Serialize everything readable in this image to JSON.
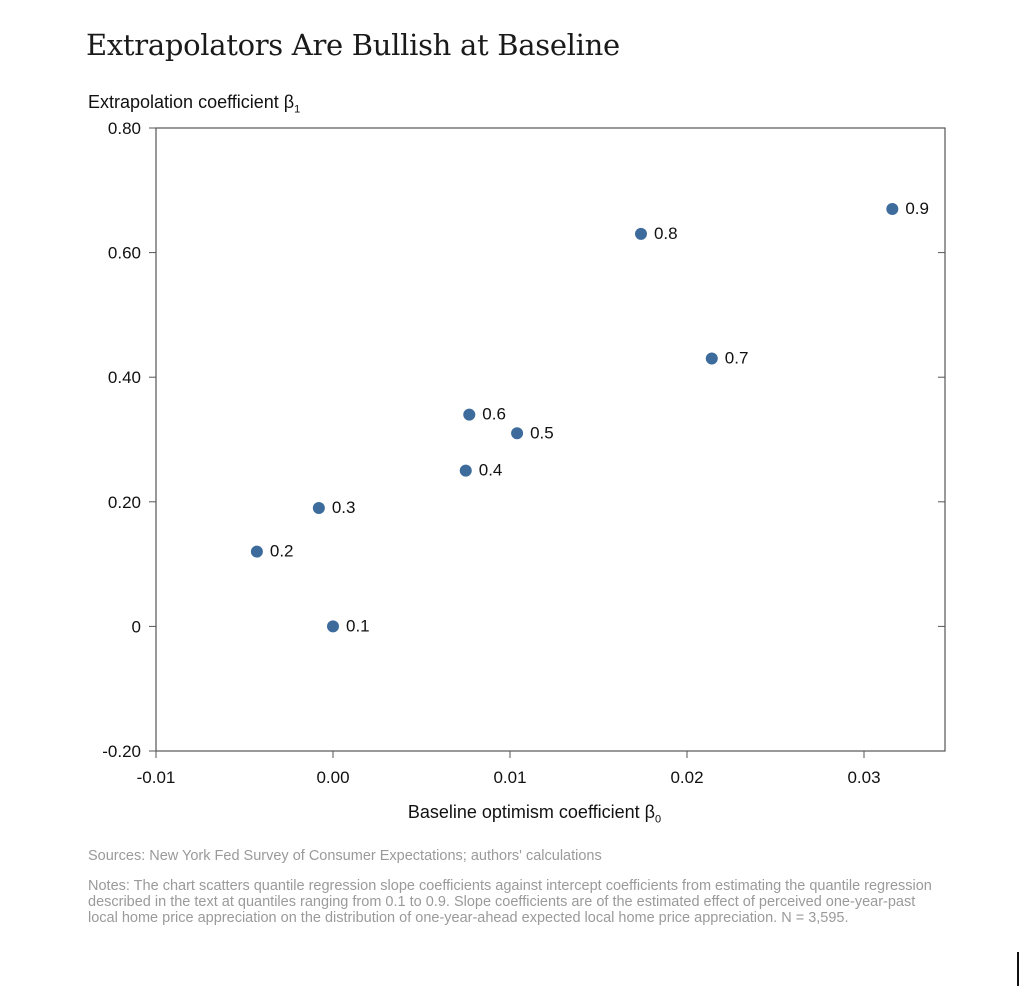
{
  "title": "Extrapolators Are Bullish at Baseline",
  "sources": "Sources:  New York Fed Survey of Consumer Expectations; authors' calculations",
  "notes": "Notes: The chart scatters quantile regression slope coefficients against intercept coefficients from estimating the quantile regression described in the text at quantiles ranging from 0.1 to 0.9. Slope coefficients are of the estimated effect of perceived one-year-past local home price appreciation on the distribution of one-year-ahead expected local home price appreciation. N = 3,595.",
  "chart_data": {
    "type": "scatter",
    "title": "Extrapolators Are Bullish at Baseline",
    "xlabel": "Baseline optimism coefficient β",
    "xlabel_sub": "0",
    "ylabel": "Extrapolation coefficient β",
    "ylabel_sub": "1",
    "xlim": [
      -0.01,
      0.035
    ],
    "ylim": [
      -0.2,
      0.8
    ],
    "xticks": [
      -0.01,
      0.0,
      0.01,
      0.02,
      0.03
    ],
    "xtick_labels": [
      "-0.01",
      "0.00",
      "0.01",
      "0.02",
      "0.03"
    ],
    "yticks": [
      -0.2,
      0.0,
      0.2,
      0.4,
      0.6,
      0.8
    ],
    "ytick_labels": [
      "-0.20",
      "0",
      "0.20",
      "0.40",
      "0.60",
      "0.80"
    ],
    "grid": false,
    "marker_color": "#3d6b9c",
    "points": [
      {
        "x": 0.0,
        "y": 0.0,
        "label": "0.1"
      },
      {
        "x": -0.0043,
        "y": 0.12,
        "label": "0.2"
      },
      {
        "x": -0.0008,
        "y": 0.19,
        "label": "0.3"
      },
      {
        "x": 0.0075,
        "y": 0.25,
        "label": "0.4"
      },
      {
        "x": 0.0104,
        "y": 0.31,
        "label": "0.5"
      },
      {
        "x": 0.0077,
        "y": 0.34,
        "label": "0.6"
      },
      {
        "x": 0.0214,
        "y": 0.43,
        "label": "0.7"
      },
      {
        "x": 0.0174,
        "y": 0.63,
        "label": "0.8"
      },
      {
        "x": 0.0316,
        "y": 0.67,
        "label": "0.9"
      }
    ]
  }
}
